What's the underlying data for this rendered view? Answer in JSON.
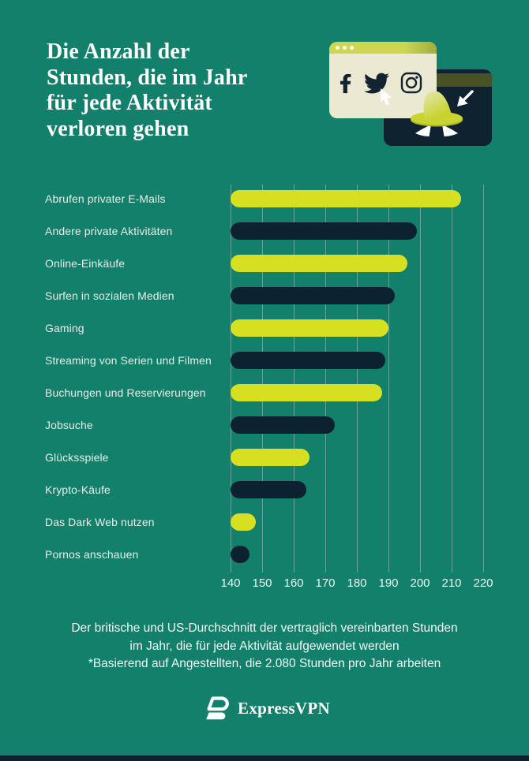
{
  "page": {
    "background_color": "#12806A",
    "accent_yellow": "#D6E021",
    "accent_navy": "#0D2231",
    "cream": "#ECE9D2"
  },
  "header": {
    "title_lines": [
      "Die Anzahl der",
      "Stunden, die im Jahr",
      "für jede Aktivität",
      "verloren gehen"
    ],
    "illustration": {
      "icons": [
        "facebook-icon",
        "twitter-icon",
        "instagram-icon",
        "spy-hat-icon",
        "spy-eyes-icon",
        "cursor-arrow-icon",
        "mouse-cursor-icon",
        "window-dots"
      ]
    }
  },
  "chart_data": {
    "type": "bar",
    "orientation": "horizontal",
    "unit": "Stunden pro Jahr",
    "categories": [
      "Abrufen privater E-Mails",
      "Andere private Aktivitäten",
      "Online-Einkäufe",
      "Surfen in sozialen Medien",
      "Gaming",
      "Streaming von Serien und Filmen",
      "Buchungen und Reservierungen",
      "Jobsuche",
      "Glücksspiele",
      "Krypto-Käufe",
      "Das Dark Web nutzen",
      "Pornos anschauen"
    ],
    "values": [
      213,
      199,
      196,
      192,
      190,
      189,
      188,
      173,
      165,
      164,
      148,
      146
    ],
    "x_ticks": [
      140,
      150,
      160,
      170,
      180,
      190,
      200,
      210,
      220
    ],
    "xlim": [
      140,
      230
    ],
    "grid": true,
    "legend": false,
    "bar_colors_alternating": [
      "#D6E021",
      "#0D2231"
    ]
  },
  "footer": {
    "caption_lines": [
      "Der britische und US-Durchschnitt der vertraglich vereinbarten Stunden",
      "im Jahr, die für jede Aktivität aufgewendet werden",
      "*Basierend auf Angestellten, die 2.080 Stunden pro Jahr arbeiten"
    ],
    "brand": "ExpressVPN"
  }
}
